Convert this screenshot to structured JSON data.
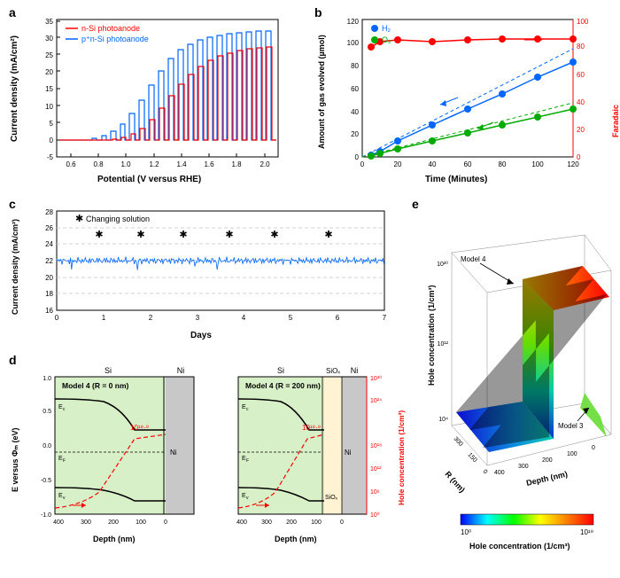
{
  "labels": {
    "a": "a",
    "b": "b",
    "c": "c",
    "d": "d",
    "e": "e"
  },
  "panel_a": {
    "type": "line",
    "title_x": "Potential (V versus RHE)",
    "title_y": "Current density (mA/cm²)",
    "xlim": [
      0.5,
      2.1
    ],
    "ylim": [
      -5,
      35
    ],
    "xticks": [
      0.6,
      0.8,
      1.0,
      1.2,
      1.4,
      1.6,
      1.8,
      2.0
    ],
    "yticks": [
      -5,
      0,
      5,
      10,
      15,
      20,
      25,
      30,
      35
    ],
    "legend": [
      {
        "label": "n-Si photoanode",
        "color": "#ff0000"
      },
      {
        "label": "p⁺n-Si photoanode",
        "color": "#0066ff"
      }
    ],
    "line_width": 1.2,
    "colors": {
      "red": "#ff0000",
      "blue": "#0066ff"
    }
  },
  "panel_b": {
    "type": "line",
    "title_x": "Time (Minutes)",
    "title_y_left": "Amount of gas evolved (µmol)",
    "title_y_right": "Faradaic efficiency (%)",
    "xlim": [
      0,
      125
    ],
    "ylim_left": [
      0,
      120
    ],
    "ylim_right": [
      0,
      100
    ],
    "xticks": [
      0,
      20,
      40,
      60,
      80,
      100,
      120
    ],
    "yticks_left": [
      0,
      20,
      40,
      60,
      80,
      100,
      120
    ],
    "yticks_right": [
      0,
      20,
      40,
      60,
      80,
      100
    ],
    "series": [
      {
        "name": "H₂",
        "color": "#0066ff",
        "marker": "circle",
        "x": [
          5,
          10,
          20,
          40,
          60,
          80,
          100,
          120
        ],
        "y": [
          2,
          5,
          14,
          28,
          42,
          55,
          70,
          83
        ]
      },
      {
        "name": "O₂",
        "color": "#00aa00",
        "marker": "circle",
        "x": [
          5,
          10,
          20,
          40,
          60,
          80,
          100,
          120
        ],
        "y": [
          1,
          3,
          7,
          14,
          21,
          28,
          35,
          42
        ]
      },
      {
        "name": "FE",
        "color": "#ff0000",
        "marker": "circle",
        "axis": "right",
        "x": [
          5,
          10,
          20,
          40,
          60,
          80,
          100,
          120
        ],
        "y": [
          80,
          84,
          85,
          84,
          85,
          86,
          86,
          86
        ]
      }
    ],
    "legend": [
      {
        "label": "H₂",
        "color": "#0066ff"
      },
      {
        "label": "O₂",
        "color": "#00aa00"
      }
    ],
    "dash_theory_color_h2": "#0066ff",
    "dash_theory_color_o2": "#00aa00",
    "marker_size": 4
  },
  "panel_c": {
    "type": "line",
    "title_x": "Days",
    "title_y": "Current density (mA/cm²)",
    "xlim": [
      0,
      7
    ],
    "ylim": [
      16,
      28
    ],
    "xticks": [
      0,
      1,
      2,
      3,
      4,
      5,
      6,
      7
    ],
    "yticks": [
      16,
      18,
      20,
      22,
      24,
      26,
      28
    ],
    "color": "#0066ff",
    "marker_label": "Changing solution",
    "marker_symbol": "✱",
    "marker_x": [
      0.9,
      1.8,
      2.7,
      3.7,
      4.65,
      5.8
    ],
    "baseline": 22,
    "grid_color": "#d0d0d0",
    "grid_dash": "4,3"
  },
  "panel_d": {
    "type": "diagram",
    "model_label": "Model 4",
    "left_title": "Model 4 (R = 0 nm)",
    "right_title": "Model 4 (R = 200 nm)",
    "x_title": "Depth (nm)",
    "y_left": "E versus Φₘ (eV)",
    "y_right": "Hole concentration (1/cm³)",
    "xticks": [
      400,
      300,
      200,
      100,
      0
    ],
    "yticks_left": [
      -1.0,
      -0.5,
      0.0,
      0.5,
      1.0
    ],
    "yticks_right": [
      "10⁰",
      "10⁶",
      "10¹²",
      "10¹⁸",
      "10²⁴",
      "10³⁰"
    ],
    "regions": {
      "Si": "#d8f0c8",
      "SiO2": "#ffe8b8",
      "SiOx": "#fff3d3",
      "Ni": "#c8c8c8"
    },
    "band_labels": [
      "Ec",
      "EF",
      "Ev"
    ],
    "annotation": "10¹⁸·⁹",
    "curve_color": "#000000",
    "hole_color": "#ff0000",
    "hole_dash": "5,3"
  },
  "panel_e": {
    "type": "surface3d",
    "title_z": "Hole concentration (1/cm³)",
    "axis_r": "R (nm)",
    "axis_depth": "Depth (nm)",
    "r_ticks": [
      0,
      150,
      300
    ],
    "depth_ticks": [
      0,
      100,
      200,
      300,
      400
    ],
    "z_ticks": [
      "10⁴",
      "10¹²",
      "10²⁰"
    ],
    "colorbar_label": "Hole concentration (1/cm³)",
    "colorbar_ticks": [
      "10⁰",
      "10¹⁹"
    ],
    "annotations": [
      "Model 4",
      "Model 3"
    ],
    "gradient": [
      "#0000ff",
      "#00ffff",
      "#00ff00",
      "#ffff00",
      "#ff8000",
      "#ff0000"
    ]
  },
  "colors": {
    "axis": "#000000",
    "text": "#000000"
  }
}
